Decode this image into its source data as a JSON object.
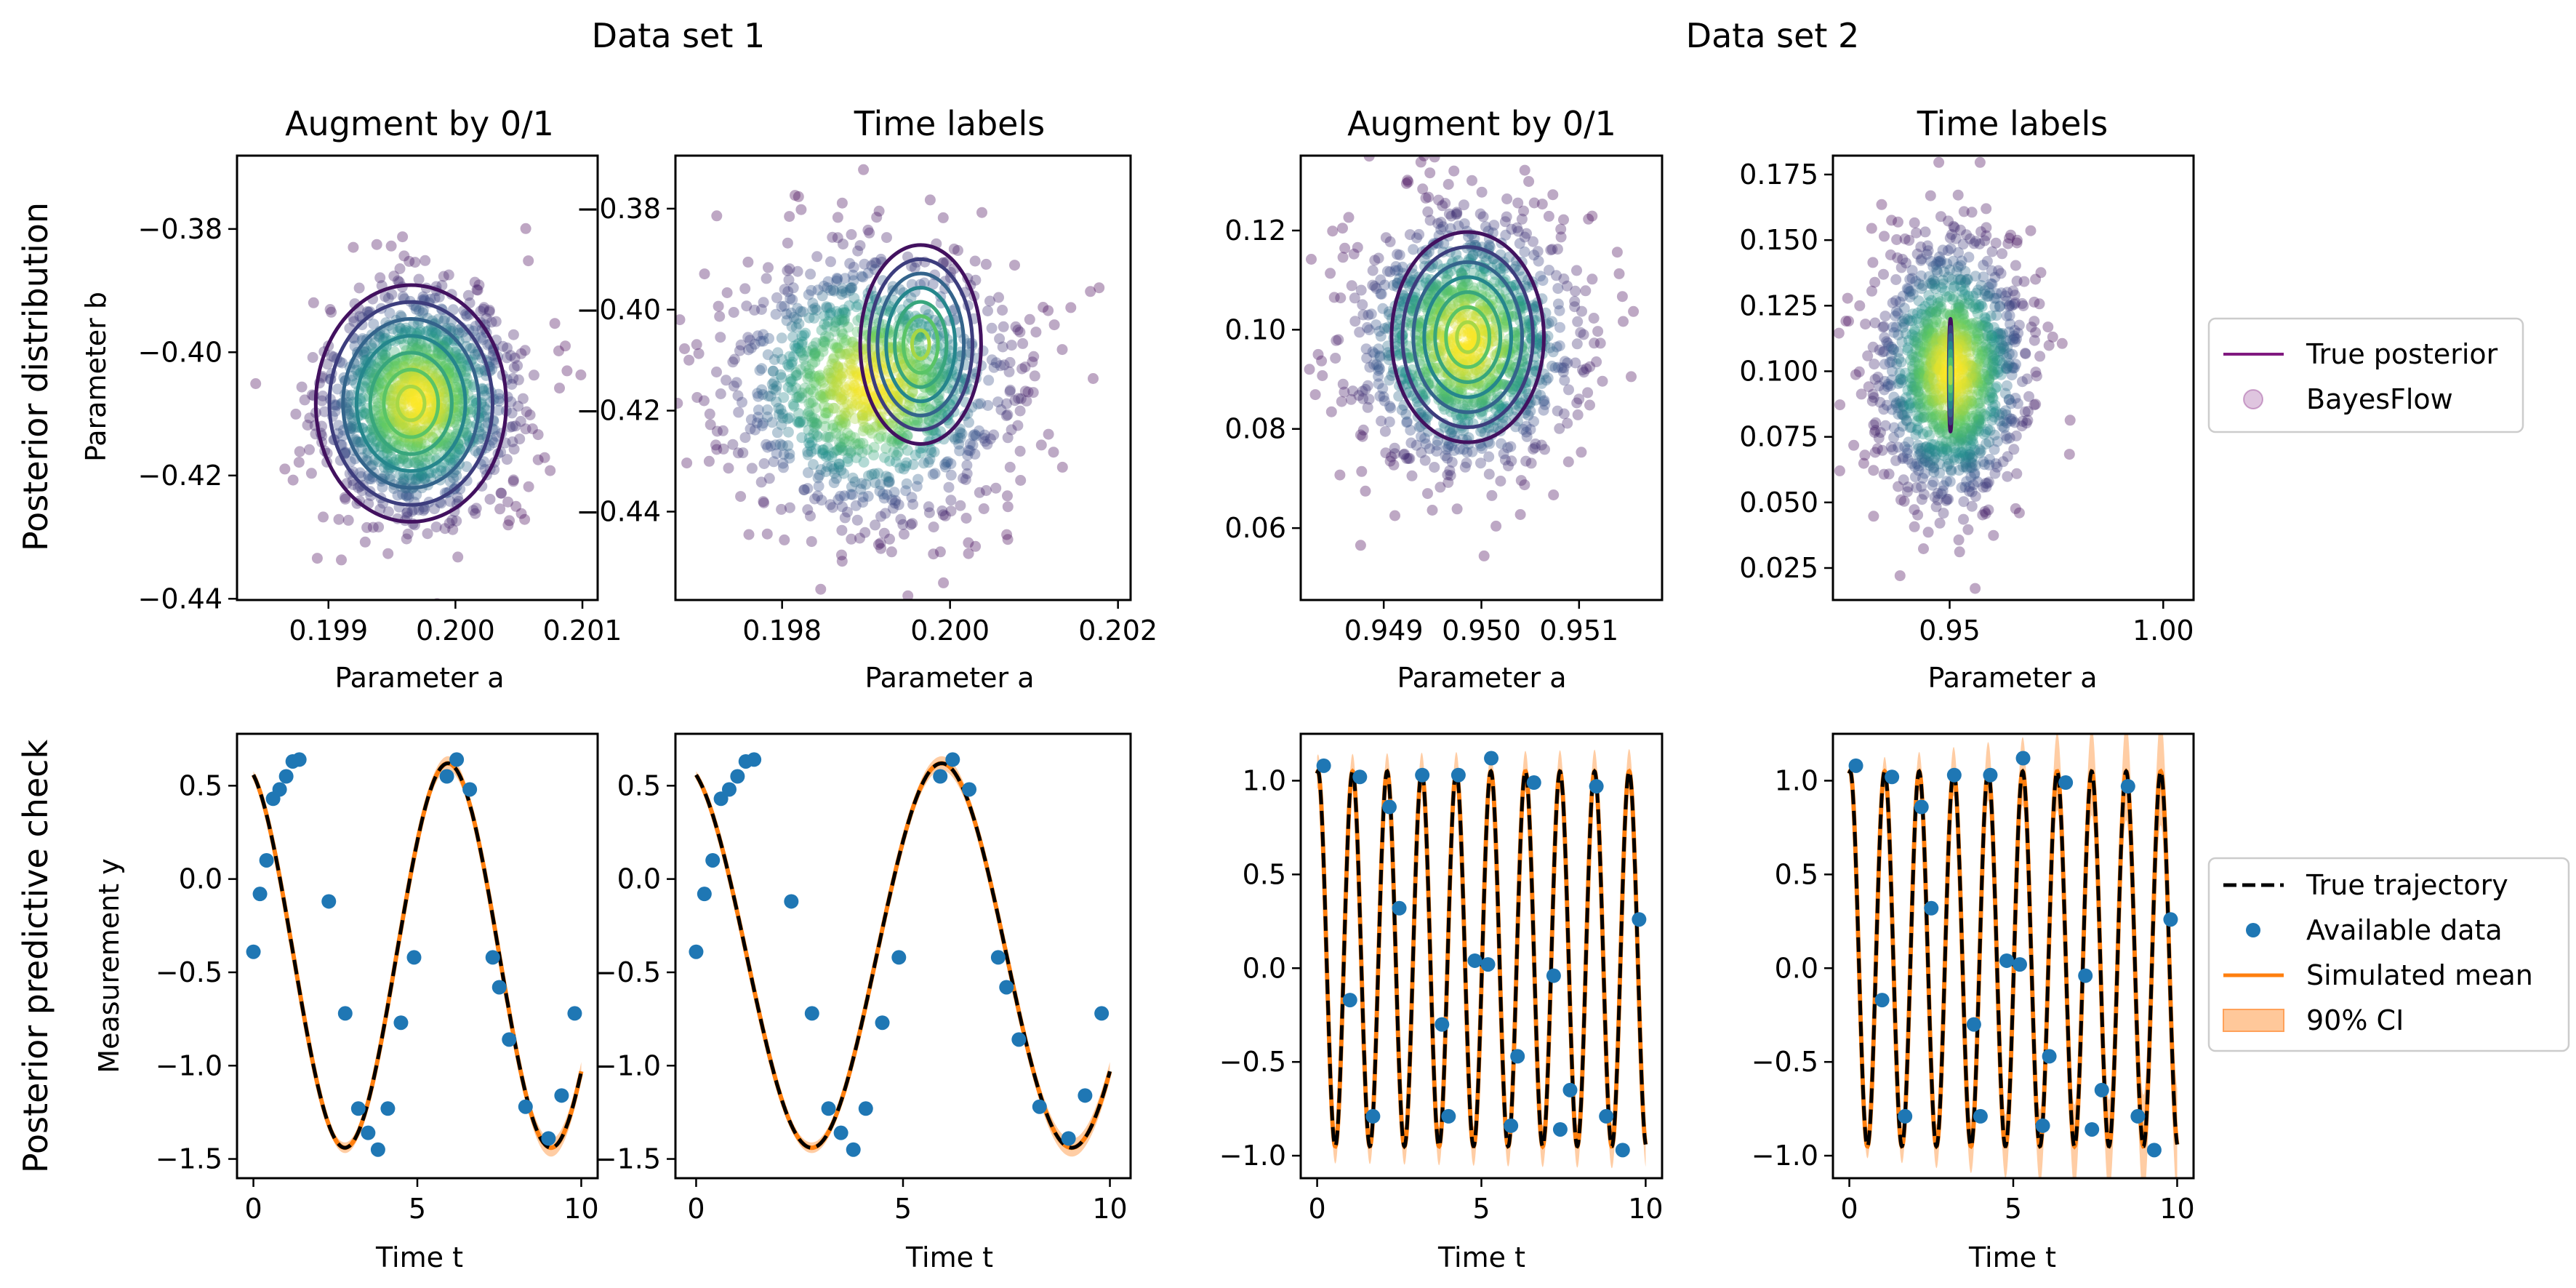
{
  "figure": {
    "group_titles": [
      "Data set 1",
      "Data set 2"
    ],
    "row_labels": [
      "Posterior distribution",
      "Posterior predictive check"
    ],
    "top_ylabel": "Parameter b",
    "top_xlabel": "Parameter a",
    "bottom_ylabel": "Measurement y",
    "bottom_xlabel": "Time t"
  },
  "legend_top": [
    "True posterior",
    "BayesFlow"
  ],
  "legend_bottom": [
    "True trajectory",
    "Available data",
    "Simulated mean",
    "90% CI"
  ],
  "colors": {
    "true_posterior": "#80197f",
    "bayesflow": "#b07cc6",
    "true_trajectory": "#000000",
    "available_data": "#1f77b4",
    "simulated_mean": "#ff7f0e",
    "ci_fill": "#ffc89a"
  },
  "chart_data": [
    {
      "type": "scatter",
      "title": "Augment by 0/1",
      "xlabel": "Parameter a",
      "ylabel": "Parameter b",
      "xlim": [
        0.19828,
        0.20112
      ],
      "ylim": [
        -0.4402,
        -0.3681
      ],
      "xticks": [
        0.199,
        0.2,
        0.201
      ],
      "xtick_labels": [
        "0.199",
        "0.200",
        "0.201"
      ],
      "yticks": [
        -0.44,
        -0.42,
        -0.4,
        -0.38
      ],
      "ytick_labels": [
        "−0.44",
        "−0.42",
        "−0.40",
        "−0.38"
      ],
      "bayesflow_sample": {
        "center": [
          0.19971,
          -0.408
        ],
        "std": [
          0.00037,
          0.0091
        ],
        "n": 1300,
        "seed": 11
      },
      "true_posterior": {
        "center": [
          0.19965,
          -0.4083
        ],
        "radii": [
          0.00075,
          0.0192
        ],
        "levels": 7
      }
    },
    {
      "type": "scatter",
      "title": "Time labels",
      "xlabel": "Parameter a",
      "ylabel": "",
      "xlim": [
        0.19673,
        0.20215
      ],
      "ylim": [
        -0.4575,
        -0.3695
      ],
      "xticks": [
        0.198,
        0.2,
        0.202
      ],
      "xtick_labels": [
        "0.198",
        "0.200",
        "0.202"
      ],
      "yticks": [
        -0.44,
        -0.42,
        -0.4,
        -0.38
      ],
      "ytick_labels": [
        "−0.44",
        "−0.42",
        "−0.40",
        "−0.38"
      ],
      "bayesflow_sample": {
        "center": [
          0.19905,
          -0.415
        ],
        "std": [
          0.0008,
          0.0128
        ],
        "n": 1300,
        "seed": 23
      },
      "true_posterior": {
        "center": [
          0.19965,
          -0.4069
        ],
        "radii": [
          0.00072,
          0.0197
        ],
        "levels": 7
      }
    },
    {
      "type": "scatter",
      "title": "Augment by 0/1",
      "xlabel": "Parameter a",
      "ylabel": "",
      "xlim": [
        0.94815,
        0.95185
      ],
      "ylim": [
        0.0455,
        0.1351
      ],
      "xticks": [
        0.949,
        0.95,
        0.951
      ],
      "xtick_labels": [
        "0.949",
        "0.950",
        "0.951"
      ],
      "yticks": [
        0.06,
        0.08,
        0.1,
        0.12
      ],
      "ytick_labels": [
        "0.06",
        "0.08",
        "0.10",
        "0.12"
      ],
      "bayesflow_sample": {
        "center": [
          0.94985,
          0.0975
        ],
        "std": [
          0.00055,
          0.0125
        ],
        "n": 1300,
        "seed": 37
      },
      "true_posterior": {
        "center": [
          0.94986,
          0.0985
        ],
        "radii": [
          0.00078,
          0.0212
        ],
        "levels": 7
      }
    },
    {
      "type": "scatter",
      "title": "Time labels",
      "xlabel": "Parameter a",
      "ylabel": "",
      "xlim": [
        0.92268,
        1.0071
      ],
      "ylim": [
        0.0128,
        0.1822
      ],
      "xticks": [
        0.95,
        1.0
      ],
      "xtick_labels": [
        "0.95",
        "1.00"
      ],
      "yticks": [
        0.025,
        0.05,
        0.075,
        0.1,
        0.125,
        0.15,
        0.175
      ],
      "ytick_labels": [
        "0.025",
        "0.050",
        "0.075",
        "0.100",
        "0.125",
        "0.150",
        "0.175"
      ],
      "bayesflow_sample": {
        "center": [
          0.9505,
          0.1
        ],
        "std": [
          0.0085,
          0.025
        ],
        "n": 1300,
        "seed": 53
      },
      "true_posterior": {
        "center": [
          0.9502,
          0.0985
        ],
        "radii": [
          0.0004,
          0.0215
        ],
        "levels": 7
      }
    },
    {
      "type": "line",
      "title": "",
      "xlabel": "Time t",
      "ylabel": "Measurement y",
      "xlim": [
        -0.5,
        10.5
      ],
      "ylim": [
        -1.603,
        0.778
      ],
      "xticks": [
        0,
        5,
        10
      ],
      "xtick_labels": [
        "0",
        "5",
        "10"
      ],
      "yticks": [
        -1.5,
        -1.0,
        -0.5,
        0.0,
        0.5
      ],
      "ytick_labels": [
        "−1.5",
        "−1.0",
        "−0.5",
        "0.0",
        "0.5"
      ],
      "model": {
        "amplitude": 1.03,
        "omega": 1.0,
        "phase": 1.92,
        "offset": -0.41
      },
      "ci_halfwidth": [
        0.02,
        0.05
      ],
      "points": [
        [
          0.0,
          -0.39
        ],
        [
          0.2,
          -0.08
        ],
        [
          0.4,
          0.1
        ],
        [
          0.6,
          0.43
        ],
        [
          0.8,
          0.48
        ],
        [
          1.0,
          0.55
        ],
        [
          1.2,
          0.63
        ],
        [
          1.4,
          0.64
        ],
        [
          2.3,
          -0.12
        ],
        [
          2.8,
          -0.72
        ],
        [
          3.2,
          -1.23
        ],
        [
          3.5,
          -1.36
        ],
        [
          3.8,
          -1.45
        ],
        [
          4.1,
          -1.23
        ],
        [
          4.5,
          -0.77
        ],
        [
          4.9,
          -0.42
        ],
        [
          5.9,
          0.55
        ],
        [
          6.2,
          0.64
        ],
        [
          6.6,
          0.48
        ],
        [
          7.3,
          -0.42
        ],
        [
          7.5,
          -0.58
        ],
        [
          7.8,
          -0.86
        ],
        [
          8.3,
          -1.22
        ],
        [
          9.0,
          -1.39
        ],
        [
          9.4,
          -1.16
        ],
        [
          9.8,
          -0.72
        ]
      ]
    },
    {
      "type": "line",
      "title": "",
      "xlabel": "Time t",
      "ylabel": "",
      "xlim": [
        -0.5,
        10.5
      ],
      "ylim": [
        -1.603,
        0.778
      ],
      "xticks": [
        0,
        5,
        10
      ],
      "xtick_labels": [
        "0",
        "5",
        "10"
      ],
      "yticks": [
        -1.5,
        -1.0,
        -0.5,
        0.0,
        0.5
      ],
      "ytick_labels": [
        "−1.5",
        "−1.0",
        "−0.5",
        "0.0",
        "0.5"
      ],
      "model": {
        "amplitude": 1.03,
        "omega": 1.0,
        "phase": 1.92,
        "offset": -0.41
      },
      "ci_halfwidth": [
        0.02,
        0.05
      ],
      "points": [
        [
          0.0,
          -0.39
        ],
        [
          0.2,
          -0.08
        ],
        [
          0.4,
          0.1
        ],
        [
          0.6,
          0.43
        ],
        [
          0.8,
          0.48
        ],
        [
          1.0,
          0.55
        ],
        [
          1.2,
          0.63
        ],
        [
          1.4,
          0.64
        ],
        [
          2.3,
          -0.12
        ],
        [
          2.8,
          -0.72
        ],
        [
          3.2,
          -1.23
        ],
        [
          3.5,
          -1.36
        ],
        [
          3.8,
          -1.45
        ],
        [
          4.1,
          -1.23
        ],
        [
          4.5,
          -0.77
        ],
        [
          4.9,
          -0.42
        ],
        [
          5.9,
          0.55
        ],
        [
          6.2,
          0.64
        ],
        [
          6.6,
          0.48
        ],
        [
          7.3,
          -0.42
        ],
        [
          7.5,
          -0.58
        ],
        [
          7.8,
          -0.86
        ],
        [
          8.3,
          -1.22
        ],
        [
          9.0,
          -1.39
        ],
        [
          9.4,
          -1.16
        ],
        [
          9.8,
          -0.72
        ]
      ]
    },
    {
      "type": "line",
      "title": "",
      "xlabel": "Time t",
      "ylabel": "",
      "xlim": [
        -0.5,
        10.5
      ],
      "ylim": [
        -1.12,
        1.25
      ],
      "xticks": [
        0,
        5,
        10
      ],
      "xtick_labels": [
        "0",
        "5",
        "10"
      ],
      "yticks": [
        -1.0,
        -0.5,
        0.0,
        0.5,
        1.0
      ],
      "ytick_labels": [
        "−1.0",
        "−0.5",
        "0.0",
        "0.5",
        "1.0"
      ],
      "model": {
        "amplitude": 1.0,
        "omega": 5.97,
        "phase": 1.42,
        "offset": 0.05
      },
      "ci_halfwidth": [
        0.09,
        0.12
      ],
      "points": [
        [
          0.2,
          1.08
        ],
        [
          1.0,
          -0.17
        ],
        [
          1.3,
          1.02
        ],
        [
          1.7,
          -0.79
        ],
        [
          2.2,
          0.86
        ],
        [
          2.5,
          0.32
        ],
        [
          3.2,
          1.03
        ],
        [
          3.8,
          -0.3
        ],
        [
          4.0,
          -0.79
        ],
        [
          4.3,
          1.03
        ],
        [
          4.8,
          0.04
        ],
        [
          5.2,
          0.02
        ],
        [
          5.3,
          1.12
        ],
        [
          5.9,
          -0.84
        ],
        [
          6.1,
          -0.47
        ],
        [
          6.6,
          0.99
        ],
        [
          7.2,
          -0.04
        ],
        [
          7.4,
          -0.86
        ],
        [
          7.7,
          -0.65
        ],
        [
          8.5,
          0.97
        ],
        [
          8.8,
          -0.79
        ],
        [
          9.3,
          -0.97
        ],
        [
          9.8,
          0.26
        ]
      ]
    },
    {
      "type": "line",
      "title": "",
      "xlabel": "Time t",
      "ylabel": "",
      "xlim": [
        -0.5,
        10.5
      ],
      "ylim": [
        -1.12,
        1.25
      ],
      "xticks": [
        0,
        5,
        10
      ],
      "xtick_labels": [
        "0",
        "5",
        "10"
      ],
      "yticks": [
        -1.0,
        -0.5,
        0.0,
        0.5,
        1.0
      ],
      "ytick_labels": [
        "−1.0",
        "−0.5",
        "0.0",
        "0.5",
        "1.0"
      ],
      "model": {
        "amplitude": 1.0,
        "omega": 5.97,
        "phase": 1.42,
        "offset": 0.05
      },
      "ci_halfwidth": [
        0.05,
        0.3
      ],
      "points": [
        [
          0.2,
          1.08
        ],
        [
          1.0,
          -0.17
        ],
        [
          1.3,
          1.02
        ],
        [
          1.7,
          -0.79
        ],
        [
          2.2,
          0.86
        ],
        [
          2.5,
          0.32
        ],
        [
          3.2,
          1.03
        ],
        [
          3.8,
          -0.3
        ],
        [
          4.0,
          -0.79
        ],
        [
          4.3,
          1.03
        ],
        [
          4.8,
          0.04
        ],
        [
          5.2,
          0.02
        ],
        [
          5.3,
          1.12
        ],
        [
          5.9,
          -0.84
        ],
        [
          6.1,
          -0.47
        ],
        [
          6.6,
          0.99
        ],
        [
          7.2,
          -0.04
        ],
        [
          7.4,
          -0.86
        ],
        [
          7.7,
          -0.65
        ],
        [
          8.5,
          0.97
        ],
        [
          8.8,
          -0.79
        ],
        [
          9.3,
          -0.97
        ],
        [
          9.8,
          0.26
        ]
      ]
    }
  ]
}
